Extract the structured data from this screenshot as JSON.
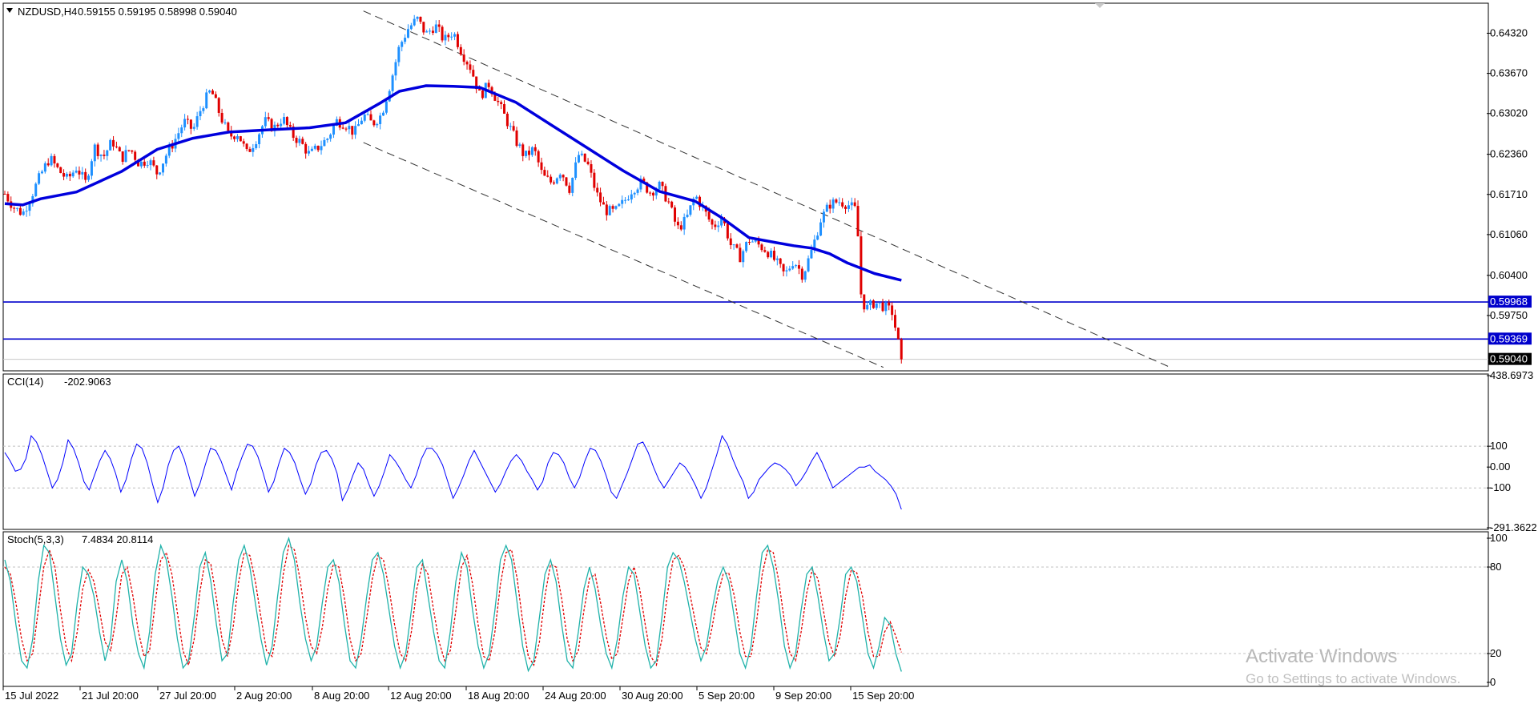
{
  "header": {
    "symbol": "NZDUSD,H4",
    "ohlc": "0.59155 0.59195 0.58998 0.59040"
  },
  "colors": {
    "bull": "#1e90ff",
    "bear": "#e00000",
    "ma": "#0000dd",
    "hline": "#0000cc",
    "channel": "#333333",
    "cci": "#0000ff",
    "stoch_main": "#20b2aa",
    "stoch_signal": "#e00000",
    "grid": "#c0c0c0"
  },
  "chart_data": [
    {
      "type": "candlestick",
      "name": "price",
      "ylim": [
        0.5888,
        0.6478
      ],
      "yticks": [
        "0.64320",
        "0.63670",
        "0.63020",
        "0.62360",
        "0.61710",
        "0.61060",
        "0.60400",
        "0.59750"
      ],
      "horizontal_lines": [
        {
          "value": 0.59968,
          "label": "0.59968"
        },
        {
          "value": 0.59369,
          "label": "0.59369"
        }
      ],
      "current_price": {
        "value": 0.5904,
        "label": "0.59040"
      },
      "ma_path": [
        [
          0,
          0.6156
        ],
        [
          0.02,
          0.6154
        ],
        [
          0.04,
          0.6164
        ],
        [
          0.08,
          0.6175
        ],
        [
          0.13,
          0.6208
        ],
        [
          0.17,
          0.6244
        ],
        [
          0.21,
          0.6262
        ],
        [
          0.25,
          0.6272
        ],
        [
          0.3,
          0.6276
        ],
        [
          0.34,
          0.6279
        ],
        [
          0.38,
          0.6287
        ],
        [
          0.42,
          0.632
        ],
        [
          0.44,
          0.6338
        ],
        [
          0.47,
          0.6347
        ],
        [
          0.5,
          0.6346
        ],
        [
          0.53,
          0.6344
        ],
        [
          0.57,
          0.632
        ],
        [
          0.61,
          0.6283
        ],
        [
          0.65,
          0.6246
        ],
        [
          0.69,
          0.6209
        ],
        [
          0.73,
          0.6176
        ],
        [
          0.77,
          0.616
        ],
        [
          0.8,
          0.6133
        ],
        [
          0.83,
          0.6101
        ],
        [
          0.86,
          0.6093
        ],
        [
          0.88,
          0.6088
        ],
        [
          0.9,
          0.6084
        ],
        [
          0.92,
          0.6075
        ],
        [
          0.94,
          0.606
        ],
        [
          0.97,
          0.6043
        ],
        [
          1.0,
          0.6032
        ]
      ],
      "channel_upper": [
        [
          0.4,
          0.6468
        ],
        [
          1.3,
          0.5891
        ]
      ],
      "channel_lower": [
        [
          0.4,
          0.6255
        ],
        [
          0.98,
          0.5891
        ]
      ],
      "price_path": [
        [
          0,
          0.6172
        ],
        [
          0.01,
          0.615
        ],
        [
          0.02,
          0.614
        ],
        [
          0.03,
          0.617
        ],
        [
          0.04,
          0.6203
        ],
        [
          0.05,
          0.623
        ],
        [
          0.06,
          0.621
        ],
        [
          0.07,
          0.6195
        ],
        [
          0.08,
          0.6215
        ],
        [
          0.09,
          0.619
        ],
        [
          0.1,
          0.6248
        ],
        [
          0.11,
          0.6232
        ],
        [
          0.12,
          0.6258
        ],
        [
          0.13,
          0.6229
        ],
        [
          0.14,
          0.6245
        ],
        [
          0.15,
          0.622
        ],
        [
          0.16,
          0.6228
        ],
        [
          0.17,
          0.6205
        ],
        [
          0.18,
          0.6235
        ],
        [
          0.19,
          0.626
        ],
        [
          0.2,
          0.6289
        ],
        [
          0.21,
          0.6275
        ],
        [
          0.22,
          0.6315
        ],
        [
          0.23,
          0.634
        ],
        [
          0.24,
          0.63
        ],
        [
          0.25,
          0.6265
        ],
        [
          0.26,
          0.627
        ],
        [
          0.27,
          0.6237
        ],
        [
          0.28,
          0.626
        ],
        [
          0.29,
          0.629
        ],
        [
          0.3,
          0.6278
        ],
        [
          0.31,
          0.6295
        ],
        [
          0.32,
          0.6268
        ],
        [
          0.33,
          0.6255
        ],
        [
          0.34,
          0.6235
        ],
        [
          0.35,
          0.6248
        ],
        [
          0.36,
          0.6262
        ],
        [
          0.37,
          0.629
        ],
        [
          0.38,
          0.6285
        ],
        [
          0.39,
          0.627
        ],
        [
          0.4,
          0.63
        ],
        [
          0.41,
          0.6285
        ],
        [
          0.42,
          0.63
        ],
        [
          0.43,
          0.635
        ],
        [
          0.44,
          0.641
        ],
        [
          0.45,
          0.644
        ],
        [
          0.46,
          0.6455
        ],
        [
          0.47,
          0.643
        ],
        [
          0.48,
          0.6445
        ],
        [
          0.49,
          0.642
        ],
        [
          0.5,
          0.6435
        ],
        [
          0.51,
          0.64
        ],
        [
          0.52,
          0.6375
        ],
        [
          0.53,
          0.633
        ],
        [
          0.54,
          0.635
        ],
        [
          0.55,
          0.632
        ],
        [
          0.56,
          0.629
        ],
        [
          0.57,
          0.6258
        ],
        [
          0.58,
          0.6232
        ],
        [
          0.59,
          0.6245
        ],
        [
          0.6,
          0.62
        ],
        [
          0.61,
          0.619
        ],
        [
          0.62,
          0.621
        ],
        [
          0.63,
          0.618
        ],
        [
          0.64,
          0.6235
        ],
        [
          0.65,
          0.622
        ],
        [
          0.66,
          0.6172
        ],
        [
          0.67,
          0.6145
        ],
        [
          0.68,
          0.6142
        ],
        [
          0.69,
          0.6158
        ],
        [
          0.7,
          0.618
        ],
        [
          0.71,
          0.619
        ],
        [
          0.72,
          0.6175
        ],
        [
          0.73,
          0.6185
        ],
        [
          0.74,
          0.616
        ],
        [
          0.75,
          0.6115
        ],
        [
          0.76,
          0.613
        ],
        [
          0.77,
          0.617
        ],
        [
          0.78,
          0.6145
        ],
        [
          0.79,
          0.6118
        ],
        [
          0.8,
          0.6135
        ],
        [
          0.81,
          0.6088
        ],
        [
          0.82,
          0.607
        ],
        [
          0.83,
          0.6098
        ],
        [
          0.84,
          0.609
        ],
        [
          0.85,
          0.608
        ],
        [
          0.86,
          0.6062
        ],
        [
          0.87,
          0.604
        ],
        [
          0.88,
          0.6065
        ],
        [
          0.89,
          0.604
        ],
        [
          0.9,
          0.608
        ],
        [
          0.91,
          0.613
        ],
        [
          0.92,
          0.6155
        ],
        [
          0.93,
          0.616
        ],
        [
          0.94,
          0.6155
        ],
        [
          0.95,
          0.6145
        ],
        [
          0.955,
          0.601
        ],
        [
          0.96,
          0.5985
        ],
        [
          0.97,
          0.5996
        ],
        [
          0.98,
          0.599
        ],
        [
          0.99,
          0.598
        ],
        [
          1.0,
          0.5904
        ]
      ],
      "x_range_fraction_of_plot": 0.605
    },
    {
      "type": "line",
      "name": "CCI(14)",
      "header_value": "-202.9063",
      "ylim": [
        -291.3622,
        438.6973
      ],
      "yticks": [
        "438.6973",
        "100",
        "0.00",
        "-100",
        "-291.3622"
      ],
      "levels": [
        100,
        -100
      ],
      "values": [
        70,
        30,
        -20,
        -10,
        40,
        150,
        120,
        60,
        -20,
        -100,
        -60,
        20,
        130,
        90,
        20,
        -70,
        -110,
        -40,
        30,
        80,
        40,
        -30,
        -120,
        -60,
        40,
        110,
        90,
        20,
        -80,
        -170,
        -100,
        10,
        80,
        100,
        40,
        -50,
        -140,
        -80,
        10,
        90,
        80,
        30,
        -40,
        -110,
        -20,
        50,
        110,
        100,
        50,
        -30,
        -120,
        -70,
        20,
        90,
        70,
        20,
        -60,
        -130,
        -80,
        10,
        70,
        80,
        40,
        -30,
        -160,
        -110,
        -40,
        20,
        -10,
        -80,
        -140,
        -90,
        -20,
        60,
        30,
        -10,
        -60,
        -100,
        -40,
        40,
        90,
        90,
        60,
        10,
        -70,
        -150,
        -100,
        -40,
        30,
        80,
        30,
        -20,
        -70,
        -120,
        -80,
        -20,
        30,
        60,
        30,
        -20,
        -60,
        -110,
        -70,
        20,
        70,
        60,
        20,
        -50,
        -100,
        -50,
        30,
        90,
        80,
        30,
        -40,
        -120,
        -150,
        -90,
        -30,
        40,
        110,
        120,
        70,
        0,
        -60,
        -100,
        -60,
        -20,
        20,
        0,
        -40,
        -90,
        -150,
        -100,
        -20,
        60,
        150,
        110,
        40,
        -20,
        -70,
        -150,
        -120,
        -60,
        -30,
        0,
        20,
        10,
        -10,
        -40,
        -90,
        -60,
        -20,
        30,
        70,
        20,
        -40,
        -100,
        -80,
        -60,
        -40,
        -20,
        0,
        0,
        10,
        -20,
        -40,
        -60,
        -90,
        -130,
        -202.9
      ]
    },
    {
      "type": "line",
      "name": "Stoch(5,3,3)",
      "header_value": "7.4834 20.8114",
      "ylim": [
        0,
        100
      ],
      "yticks": [
        "100",
        "80",
        "20",
        "0"
      ],
      "levels": [
        80,
        20
      ],
      "main_values": [
        85,
        70,
        40,
        15,
        10,
        30,
        70,
        95,
        90,
        60,
        30,
        12,
        20,
        55,
        80,
        75,
        60,
        35,
        15,
        30,
        70,
        85,
        70,
        40,
        20,
        10,
        35,
        75,
        95,
        85,
        60,
        30,
        10,
        15,
        45,
        80,
        90,
        70,
        40,
        15,
        20,
        55,
        85,
        95,
        80,
        55,
        30,
        12,
        25,
        60,
        90,
        100,
        85,
        55,
        30,
        15,
        25,
        55,
        80,
        85,
        70,
        40,
        15,
        10,
        30,
        60,
        85,
        90,
        75,
        50,
        25,
        10,
        20,
        50,
        80,
        85,
        60,
        35,
        15,
        10,
        35,
        70,
        90,
        80,
        50,
        25,
        10,
        20,
        50,
        85,
        95,
        85,
        55,
        25,
        8,
        15,
        45,
        75,
        85,
        70,
        40,
        15,
        10,
        35,
        65,
        80,
        65,
        40,
        20,
        10,
        30,
        60,
        80,
        75,
        50,
        25,
        10,
        15,
        45,
        80,
        90,
        85,
        70,
        50,
        30,
        15,
        25,
        50,
        70,
        80,
        70,
        45,
        20,
        10,
        25,
        60,
        90,
        95,
        80,
        55,
        25,
        10,
        20,
        50,
        75,
        80,
        60,
        35,
        15,
        20,
        45,
        75,
        80,
        70,
        45,
        20,
        10,
        25,
        45,
        40,
        20,
        7.48
      ],
      "signal_values": [
        80,
        75,
        55,
        30,
        15,
        20,
        50,
        80,
        92,
        80,
        50,
        25,
        15,
        35,
        65,
        78,
        70,
        50,
        28,
        22,
        45,
        75,
        80,
        60,
        35,
        18,
        22,
        55,
        85,
        90,
        75,
        48,
        22,
        12,
        30,
        62,
        85,
        82,
        58,
        30,
        18,
        38,
        70,
        90,
        88,
        70,
        45,
        22,
        18,
        40,
        75,
        95,
        92,
        72,
        45,
        25,
        20,
        38,
        65,
        82,
        80,
        58,
        30,
        15,
        20,
        45,
        72,
        88,
        85,
        65,
        40,
        20,
        15,
        35,
        65,
        82,
        75,
        50,
        28,
        15,
        22,
        50,
        80,
        88,
        68,
        40,
        18,
        15,
        35,
        68,
        90,
        92,
        72,
        42,
        18,
        12,
        28,
        60,
        82,
        80,
        58,
        30,
        15,
        22,
        50,
        72,
        75,
        55,
        32,
        16,
        20,
        45,
        70,
        80,
        65,
        40,
        18,
        12,
        30,
        62,
        85,
        88,
        80,
        62,
        42,
        24,
        20,
        38,
        60,
        75,
        76,
        60,
        35,
        18,
        18,
        42,
        75,
        92,
        90,
        70,
        42,
        20,
        15,
        35,
        62,
        78,
        72,
        50,
        28,
        18,
        32,
        60,
        78,
        76,
        60,
        35,
        18,
        18,
        35,
        42,
        32,
        20.81
      ]
    }
  ],
  "x_axis": {
    "labels": [
      "15 Jul 2022",
      "21 Jul 20:00",
      "27 Jul 20:00",
      "2 Aug 20:00",
      "8 Aug 20:00",
      "12 Aug 20:00",
      "18 Aug 20:00",
      "24 Aug 20:00",
      "30 Aug 20:00",
      "5 Sep 20:00",
      "9 Sep 20:00",
      "15 Sep 20:00"
    ]
  },
  "watermark": {
    "line1": "Activate Windows",
    "line2": "Go to Settings to activate Windows."
  }
}
